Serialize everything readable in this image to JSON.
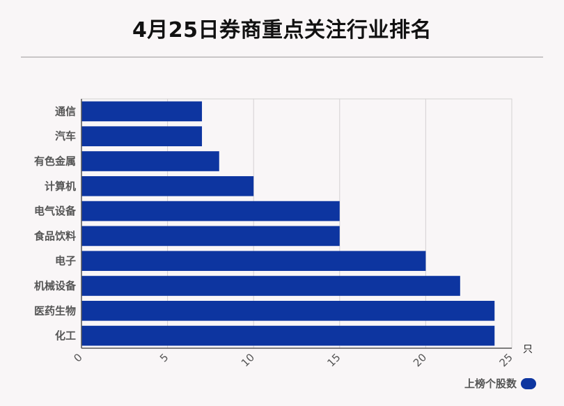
{
  "title": "4月25日券商重点关注行业排名",
  "colors": {
    "bar": "#0d35a0",
    "grid": "#d4d1d2",
    "axis": "#555555",
    "label": "#555555"
  },
  "chart_data": {
    "type": "bar",
    "orientation": "horizontal",
    "title": "4月25日券商重点关注行业排名",
    "categories": [
      "通信",
      "汽车",
      "有色金属",
      "计算机",
      "电气设备",
      "食品饮料",
      "电子",
      "机械设备",
      "医药生物",
      "化工"
    ],
    "series": [
      {
        "name": "上榜个股数",
        "values": [
          7,
          7,
          8,
          10,
          15,
          15,
          20,
          22,
          24,
          24
        ]
      }
    ],
    "xlim": [
      0,
      25
    ],
    "xticks": [
      "0",
      "5",
      "10",
      "15",
      "20",
      "25"
    ],
    "xunit": "只",
    "grid": true,
    "legend": "bottom-right"
  }
}
